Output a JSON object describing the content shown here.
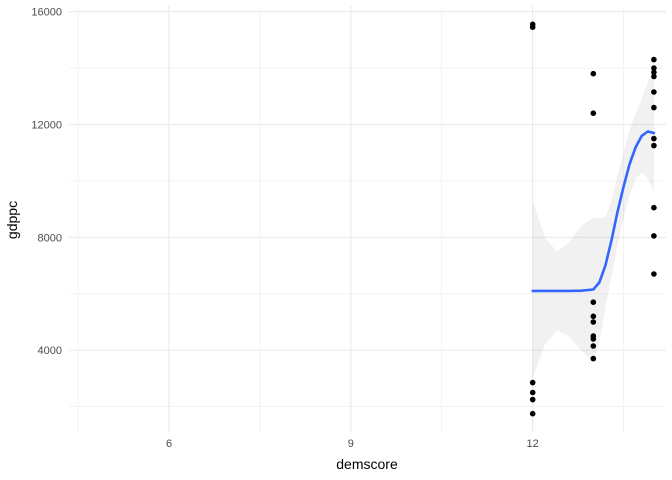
{
  "chart_data": {
    "type": "scatter",
    "title": "",
    "xlabel": "demscore",
    "ylabel": "gdppc",
    "xlim": [
      4.35,
      14.2
    ],
    "ylim": [
      1100,
      16200
    ],
    "x_ticks": [
      6,
      9,
      12
    ],
    "x_tick_labels": [
      "6",
      "9",
      "12"
    ],
    "x_minor": [
      4.5,
      7.5,
      10.5,
      13.5
    ],
    "y_ticks": [
      4000,
      8000,
      12000,
      16000
    ],
    "y_tick_labels": [
      "4000",
      "8000",
      "12000",
      "16000"
    ],
    "y_minor": [
      2000,
      6000,
      10000,
      14000
    ],
    "grid": true,
    "legend": "none",
    "points": [
      {
        "x": 12,
        "y": 15550
      },
      {
        "x": 12,
        "y": 15450
      },
      {
        "x": 12,
        "y": 2850
      },
      {
        "x": 12,
        "y": 2500
      },
      {
        "x": 12,
        "y": 2250
      },
      {
        "x": 12,
        "y": 1750
      },
      {
        "x": 13,
        "y": 13800
      },
      {
        "x": 13,
        "y": 12400
      },
      {
        "x": 13,
        "y": 5700
      },
      {
        "x": 13,
        "y": 5200
      },
      {
        "x": 13,
        "y": 5000
      },
      {
        "x": 13,
        "y": 4500
      },
      {
        "x": 13,
        "y": 4400
      },
      {
        "x": 13,
        "y": 4150
      },
      {
        "x": 13,
        "y": 3700
      },
      {
        "x": 14,
        "y": 14300
      },
      {
        "x": 14,
        "y": 14000
      },
      {
        "x": 14,
        "y": 13850
      },
      {
        "x": 14,
        "y": 13700
      },
      {
        "x": 14,
        "y": 13150
      },
      {
        "x": 14,
        "y": 12600
      },
      {
        "x": 14,
        "y": 11500
      },
      {
        "x": 14,
        "y": 11250
      },
      {
        "x": 14,
        "y": 9050
      },
      {
        "x": 14,
        "y": 8050
      },
      {
        "x": 14,
        "y": 6700
      }
    ],
    "smooth": {
      "x": [
        12.0,
        12.2,
        12.4,
        12.6,
        12.8,
        13.0,
        13.1,
        13.2,
        13.3,
        13.4,
        13.5,
        13.6,
        13.7,
        13.8,
        13.9,
        14.0
      ],
      "y": [
        6100,
        6100,
        6100,
        6100,
        6110,
        6150,
        6400,
        7000,
        7900,
        8900,
        9800,
        10600,
        11200,
        11600,
        11750,
        11700
      ],
      "lower": [
        3000,
        4200,
        4700,
        4500,
        4000,
        3600,
        4300,
        5500,
        6600,
        7700,
        8700,
        9500,
        10100,
        10300,
        10100,
        9600
      ],
      "upper": [
        9300,
        8000,
        7500,
        7800,
        8400,
        8700,
        8700,
        8700,
        9300,
        10200,
        11000,
        11800,
        12400,
        12900,
        13500,
        13900
      ],
      "color": "#3366ff",
      "ribbon_color": "#999999"
    },
    "point_color": "#000000"
  }
}
